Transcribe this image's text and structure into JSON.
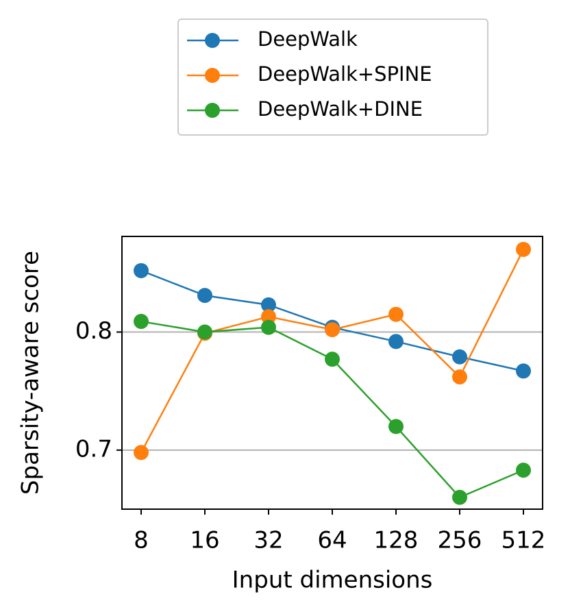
{
  "chart_data": {
    "type": "line",
    "xlabel": "Input dimensions",
    "ylabel": "Sparsity-aware score",
    "categories": [
      "8",
      "16",
      "32",
      "64",
      "128",
      "256",
      "512"
    ],
    "series": [
      {
        "name": "DeepWalk",
        "color": "#1f77b4",
        "values": [
          0.852,
          0.831,
          0.823,
          0.804,
          0.792,
          0.779,
          0.767
        ]
      },
      {
        "name": "DeepWalk+SPINE",
        "color": "#ff7f0e",
        "values": [
          0.698,
          0.799,
          0.813,
          0.802,
          0.815,
          0.762,
          0.87
        ]
      },
      {
        "name": "DeepWalk+DINE",
        "color": "#2ca02c",
        "values": [
          0.809,
          0.8,
          0.804,
          0.777,
          0.72,
          0.66,
          0.683
        ]
      }
    ],
    "ylim": [
      0.65,
      0.881
    ],
    "yticks": [
      0.7,
      0.8
    ],
    "grid": true,
    "legend": "upper center"
  }
}
